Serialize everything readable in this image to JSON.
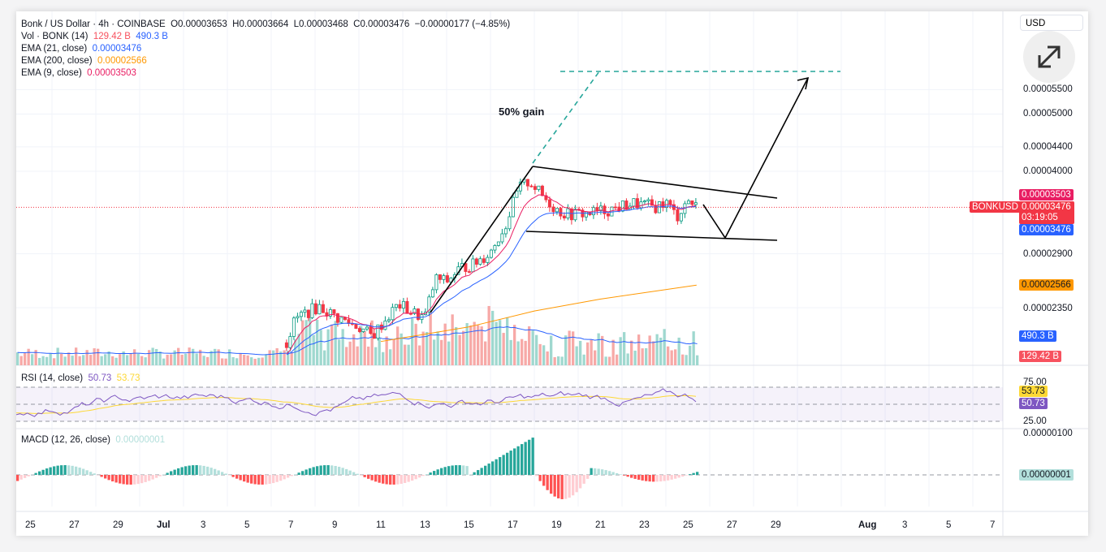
{
  "header": {
    "title": "Bonk / US Dollar · 4h · COINBASE",
    "open": "O0.00003653",
    "high": "H0.00003664",
    "low": "L0.00003468",
    "close": "C0.00003476",
    "change": "−0.00000177 (−4.85%)"
  },
  "indicators": {
    "vol": {
      "label": "Vol · BONK (14)",
      "v1": "129.42 B",
      "v2": "490.3 B"
    },
    "ema21": {
      "label": "EMA (21, close)",
      "value": "0.00003476"
    },
    "ema200": {
      "label": "EMA (200, close)",
      "value": "0.00002566"
    },
    "ema9": {
      "label": "EMA (9, close)",
      "value": "0.00003503"
    },
    "rsi": {
      "label": "RSI (14, close)",
      "v1": "50.73",
      "v2": "53.73"
    },
    "macd": {
      "label": "MACD (12, 26, close)",
      "value": "0.00000001"
    }
  },
  "currency": "USD",
  "price_axis": [
    "0.00005500",
    "0.00005000",
    "0.00004400",
    "0.00004000",
    "0.00002900",
    "0.00002350"
  ],
  "rsi_axis": [
    "75.00",
    "25.00"
  ],
  "macd_axis": [
    "0.00000100"
  ],
  "tags": {
    "ema9": "0.00003503",
    "symbol": "BONKUSD",
    "last": "0.00003476",
    "countdown": "03:19:05",
    "ema21": "0.00003476",
    "ema200": "0.00002566",
    "vol_ma": "490.3 B",
    "vol": "129.42 B",
    "rsi": "50.73",
    "rsi_ma": "53.73",
    "macd": "0.00000001"
  },
  "colors": {
    "up": "#089981",
    "down": "#f23645",
    "ema9": "#e91e63",
    "ema21": "#2962ff",
    "ema200": "#ff9800",
    "rsi": "#7e57c2",
    "rsi_ma": "#fdd835"
  },
  "annotation": "50% gain",
  "chart_data": {
    "type": "candlestick",
    "x_unit": "day of July 2024 (4h candles)",
    "y_scale": "log",
    "close_keypoints": [
      [
        5.7,
        20.5
      ],
      [
        6.1,
        22.5
      ],
      [
        6.5,
        23.0
      ],
      [
        7.2,
        23.6
      ],
      [
        8.0,
        22.6
      ],
      [
        9.0,
        21.8
      ],
      [
        9.6,
        21.0
      ],
      [
        10.2,
        22.4
      ],
      [
        10.8,
        23.8
      ],
      [
        11.5,
        23.0
      ],
      [
        12.0,
        22.6
      ],
      [
        12.5,
        26.3
      ],
      [
        13.0,
        26.0
      ],
      [
        13.6,
        27.4
      ],
      [
        14.2,
        27.8
      ],
      [
        15.0,
        29.2
      ],
      [
        15.7,
        32.5
      ],
      [
        16.3,
        37.5
      ],
      [
        16.8,
        38.5
      ],
      [
        17.3,
        36.5
      ],
      [
        18.0,
        34.5
      ],
      [
        18.5,
        33.8
      ],
      [
        19.5,
        34.0
      ],
      [
        20.5,
        34.5
      ],
      [
        21.5,
        35.3
      ],
      [
        22.5,
        34.8
      ],
      [
        23.0,
        35.5
      ],
      [
        23.5,
        33.5
      ],
      [
        24.0,
        35.8
      ],
      [
        24.4,
        34.76
      ]
    ],
    "ema200_keypoints": [
      [
        10.0,
        20.6
      ],
      [
        14.0,
        21.8
      ],
      [
        17.0,
        23.2
      ],
      [
        20.0,
        24.3
      ],
      [
        24.4,
        25.66
      ]
    ],
    "price_unit": "1e-6 USD",
    "time_ticks": [
      "25",
      "27",
      "29",
      "Jul",
      "3",
      "5",
      "7",
      "9",
      "11",
      "13",
      "15",
      "17",
      "19",
      "21",
      "23",
      "25",
      "27",
      "29",
      "Aug",
      "3",
      "5",
      "7"
    ]
  }
}
